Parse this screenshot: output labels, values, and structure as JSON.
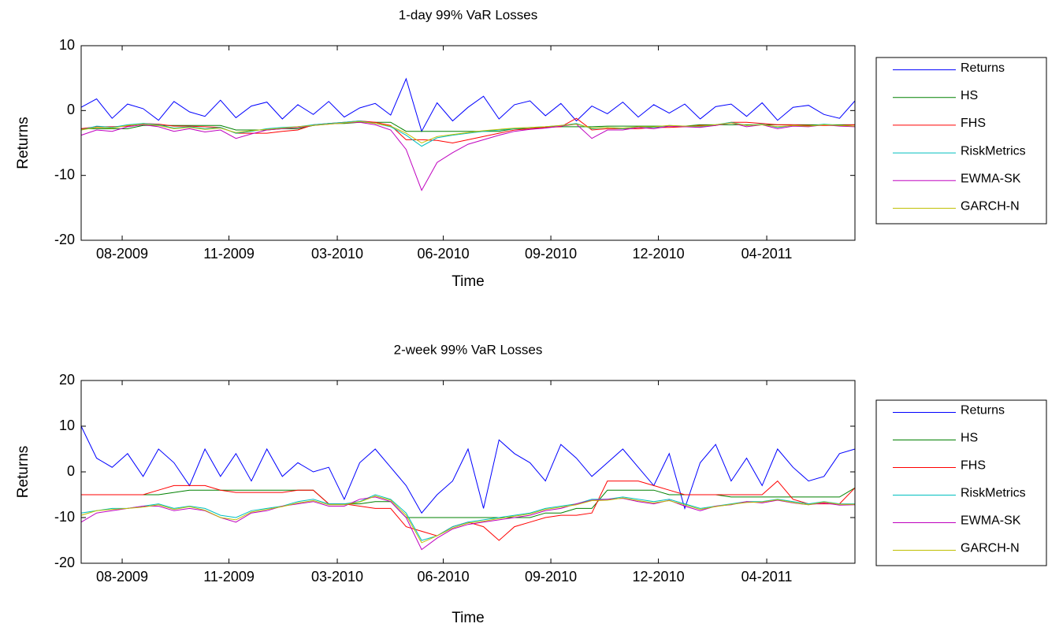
{
  "chart_data": [
    {
      "type": "line",
      "title": "1-day 99% VaR Losses",
      "x_label": "Time",
      "y_label": "Returns",
      "x": [
        0,
        2,
        4,
        6,
        8,
        10,
        12,
        14,
        16,
        18,
        20,
        22,
        24,
        26,
        28,
        30,
        32,
        34,
        36,
        38,
        40,
        42,
        44,
        46,
        48,
        50,
        52,
        54,
        56,
        58,
        60,
        62,
        64,
        66,
        68,
        70,
        72,
        74,
        76,
        78,
        80,
        82,
        84,
        86,
        88,
        90,
        92,
        94,
        96,
        98,
        100
      ],
      "xlim": [
        0,
        100
      ],
      "xticks": [
        {
          "value": 5.3,
          "label": "08-2009"
        },
        {
          "value": 19.1,
          "label": "11-2009"
        },
        {
          "value": 33.1,
          "label": "03-2010"
        },
        {
          "value": 46.8,
          "label": "06-2010"
        },
        {
          "value": 60.7,
          "label": "09-2010"
        },
        {
          "value": 74.6,
          "label": "12-2010"
        },
        {
          "value": 88.6,
          "label": "04-2011"
        }
      ],
      "ylim": [
        -20,
        10
      ],
      "yticks": [
        -20,
        -10,
        0,
        10
      ],
      "grid": false,
      "legend": "east-outside",
      "series": [
        {
          "name": "Returns",
          "color": "#0000ff",
          "values": [
            0.5,
            1.8,
            -1.2,
            1.0,
            0.3,
            -1.5,
            1.4,
            -0.2,
            -0.9,
            1.6,
            -1.1,
            0.7,
            1.3,
            -1.3,
            0.9,
            -0.6,
            1.4,
            -1.0,
            0.4,
            1.1,
            -0.7,
            4.9,
            -3.2,
            1.2,
            -1.6,
            0.5,
            2.2,
            -1.3,
            0.9,
            1.5,
            -0.8,
            1.1,
            -1.6,
            0.7,
            -0.5,
            1.3,
            -1.0,
            0.9,
            -0.4,
            1.0,
            -1.3,
            0.6,
            1.0,
            -0.9,
            1.2,
            -1.5,
            0.5,
            0.8,
            -0.6,
            -1.2,
            1.5
          ]
        },
        {
          "name": "HS",
          "color": "#008000",
          "values": [
            -2.8,
            -2.8,
            -2.8,
            -2.8,
            -2.3,
            -2.3,
            -2.3,
            -2.3,
            -2.3,
            -2.3,
            -3.0,
            -3.0,
            -3.0,
            -2.8,
            -2.8,
            -2.3,
            -2.0,
            -2.0,
            -1.8,
            -1.8,
            -1.8,
            -3.2,
            -3.2,
            -3.2,
            -3.2,
            -3.2,
            -3.2,
            -3.2,
            -2.8,
            -2.8,
            -2.5,
            -2.5,
            -2.5,
            -2.5,
            -2.4,
            -2.4,
            -2.4,
            -2.4,
            -2.4,
            -2.4,
            -2.2,
            -2.2,
            -2.2,
            -2.2,
            -2.2,
            -2.2,
            -2.2,
            -2.2,
            -2.2,
            -2.2,
            -2.2
          ]
        },
        {
          "name": "FHS",
          "color": "#ff0000",
          "values": [
            -2.8,
            -2.5,
            -2.5,
            -2.4,
            -2.0,
            -2.1,
            -2.4,
            -2.4,
            -2.5,
            -2.6,
            -3.5,
            -3.5,
            -3.5,
            -3.2,
            -3.0,
            -2.2,
            -2.0,
            -1.8,
            -1.6,
            -1.8,
            -2.3,
            -4.5,
            -4.5,
            -4.6,
            -5.0,
            -4.5,
            -4.0,
            -3.5,
            -3.0,
            -2.8,
            -2.6,
            -2.5,
            -1.2,
            -3.0,
            -2.8,
            -2.8,
            -2.8,
            -2.6,
            -2.6,
            -2.5,
            -2.3,
            -2.3,
            -1.8,
            -1.8,
            -2.0,
            -2.2,
            -2.2,
            -2.3,
            -2.3,
            -2.3,
            -2.2
          ]
        },
        {
          "name": "RiskMetrics",
          "color": "#00bfbf",
          "values": [
            -3.0,
            -2.4,
            -2.6,
            -2.2,
            -2.0,
            -2.2,
            -2.7,
            -2.5,
            -2.8,
            -2.6,
            -3.5,
            -3.2,
            -2.8,
            -2.6,
            -2.5,
            -2.2,
            -2.0,
            -1.8,
            -1.6,
            -2.0,
            -2.5,
            -3.8,
            -5.5,
            -4.2,
            -3.8,
            -3.5,
            -3.2,
            -3.0,
            -2.8,
            -2.6,
            -2.5,
            -2.3,
            -2.0,
            -2.8,
            -2.6,
            -2.8,
            -2.5,
            -2.6,
            -2.3,
            -2.4,
            -2.5,
            -2.2,
            -1.8,
            -2.3,
            -2.1,
            -2.6,
            -2.3,
            -2.4,
            -2.1,
            -2.3,
            -2.4
          ]
        },
        {
          "name": "EWMA-SK",
          "color": "#bf00bf",
          "values": [
            -3.8,
            -3.0,
            -3.2,
            -2.5,
            -2.2,
            -2.5,
            -3.2,
            -2.8,
            -3.3,
            -3.0,
            -4.3,
            -3.6,
            -3.0,
            -2.8,
            -2.6,
            -2.3,
            -2.1,
            -1.9,
            -1.8,
            -2.2,
            -3.0,
            -6.0,
            -12.3,
            -8.0,
            -6.5,
            -5.2,
            -4.5,
            -3.8,
            -3.2,
            -2.9,
            -2.7,
            -2.4,
            -2.1,
            -4.3,
            -3.0,
            -3.0,
            -2.6,
            -2.8,
            -2.4,
            -2.5,
            -2.6,
            -2.3,
            -1.9,
            -2.5,
            -2.2,
            -2.8,
            -2.4,
            -2.5,
            -2.2,
            -2.4,
            -2.5
          ]
        },
        {
          "name": "GARCH-N",
          "color": "#bfbf00",
          "values": [
            -3.0,
            -2.6,
            -2.7,
            -2.3,
            -2.1,
            -2.3,
            -2.8,
            -2.6,
            -2.9,
            -2.7,
            -3.4,
            -3.1,
            -2.9,
            -2.7,
            -2.5,
            -2.3,
            -2.1,
            -1.9,
            -1.7,
            -2.0,
            -2.4,
            -3.5,
            -5.0,
            -4.0,
            -3.7,
            -3.4,
            -3.1,
            -2.9,
            -2.7,
            -2.6,
            -2.5,
            -2.3,
            -2.1,
            -2.7,
            -2.6,
            -2.7,
            -2.5,
            -2.5,
            -2.3,
            -2.4,
            -2.4,
            -2.2,
            -1.9,
            -2.3,
            -2.2,
            -2.5,
            -2.3,
            -2.4,
            -2.2,
            -2.3,
            -2.4
          ]
        }
      ]
    },
    {
      "type": "line",
      "title": "2-week 99% VaR Losses",
      "x_label": "Time",
      "y_label": "Returns",
      "x": [
        0,
        2,
        4,
        6,
        8,
        10,
        12,
        14,
        16,
        18,
        20,
        22,
        24,
        26,
        28,
        30,
        32,
        34,
        36,
        38,
        40,
        42,
        44,
        46,
        48,
        50,
        52,
        54,
        56,
        58,
        60,
        62,
        64,
        66,
        68,
        70,
        72,
        74,
        76,
        78,
        80,
        82,
        84,
        86,
        88,
        90,
        92,
        94,
        96,
        98,
        100
      ],
      "xlim": [
        0,
        100
      ],
      "xticks": [
        {
          "value": 5.3,
          "label": "08-2009"
        },
        {
          "value": 19.1,
          "label": "11-2009"
        },
        {
          "value": 33.1,
          "label": "03-2010"
        },
        {
          "value": 46.8,
          "label": "06-2010"
        },
        {
          "value": 60.7,
          "label": "09-2010"
        },
        {
          "value": 74.6,
          "label": "12-2010"
        },
        {
          "value": 88.6,
          "label": "04-2011"
        }
      ],
      "ylim": [
        -20,
        20
      ],
      "yticks": [
        -20,
        -10,
        0,
        10,
        20
      ],
      "grid": false,
      "legend": "east-outside",
      "series": [
        {
          "name": "Returns",
          "color": "#0000ff",
          "values": [
            10,
            3,
            1,
            4,
            -1,
            5,
            2,
            -3,
            5,
            -1,
            4,
            -2,
            5,
            -1,
            2,
            0,
            1,
            -6,
            2,
            5,
            1,
            -3,
            -9,
            -5,
            -2,
            5,
            -8,
            7,
            4,
            2,
            -2,
            6,
            3,
            -1,
            2,
            5,
            1,
            -3,
            4,
            -8,
            2,
            6,
            -2,
            3,
            -3,
            5,
            1,
            -2,
            -1,
            4,
            5
          ]
        },
        {
          "name": "HS",
          "color": "#008000",
          "values": [
            -5,
            -5,
            -5,
            -5,
            -5,
            -5,
            -4.5,
            -4,
            -4,
            -4,
            -4,
            -4,
            -4,
            -4,
            -4,
            -4,
            -7,
            -7,
            -7,
            -6.5,
            -6.5,
            -10,
            -10,
            -10,
            -10,
            -10,
            -10,
            -10,
            -10,
            -10,
            -9,
            -9,
            -8,
            -8,
            -4,
            -4,
            -4,
            -4,
            -5,
            -5,
            -5,
            -5,
            -5.5,
            -5.5,
            -5.5,
            -5.5,
            -5.5,
            -5.5,
            -5.5,
            -5.5,
            -3.5
          ]
        },
        {
          "name": "FHS",
          "color": "#ff0000",
          "values": [
            -5,
            -5,
            -5,
            -5,
            -5,
            -4,
            -3,
            -3,
            -3,
            -4,
            -4.5,
            -4.5,
            -4.5,
            -4.5,
            -4,
            -4,
            -7,
            -7,
            -7.5,
            -8,
            -8,
            -12,
            -13,
            -14,
            -12,
            -11,
            -12,
            -15,
            -12,
            -11,
            -10,
            -9.5,
            -9.5,
            -9,
            -2,
            -2,
            -2,
            -3,
            -4,
            -5,
            -5,
            -5,
            -5,
            -5,
            -5,
            -2,
            -6,
            -7,
            -7,
            -7,
            -3.5
          ]
        },
        {
          "name": "RiskMetrics",
          "color": "#00bfbf",
          "values": [
            -9,
            -8.5,
            -8,
            -8,
            -7.5,
            -7,
            -8,
            -7.5,
            -8,
            -9.5,
            -10,
            -8.5,
            -8,
            -7.5,
            -6.5,
            -6,
            -7,
            -7,
            -6.5,
            -5,
            -6,
            -9,
            -15,
            -14,
            -12,
            -11,
            -10.5,
            -10,
            -9.5,
            -9,
            -8,
            -7.5,
            -7,
            -6,
            -6,
            -5.5,
            -6,
            -6.5,
            -6,
            -7,
            -8,
            -7.5,
            -7,
            -6.5,
            -6.5,
            -6,
            -6.5,
            -7,
            -6.5,
            -7,
            -7
          ]
        },
        {
          "name": "EWMA-SK",
          "color": "#bf00bf",
          "values": [
            -11,
            -9,
            -8.5,
            -8,
            -7.5,
            -7.5,
            -8.5,
            -8,
            -8.5,
            -10,
            -11,
            -9,
            -8.5,
            -7.5,
            -7,
            -6.5,
            -7.5,
            -7.5,
            -6,
            -5.5,
            -6.5,
            -10,
            -17,
            -14.5,
            -12.5,
            -11.5,
            -11,
            -10.5,
            -10,
            -9.5,
            -8.5,
            -8,
            -7,
            -6.2,
            -6,
            -5.8,
            -6.5,
            -7,
            -6.2,
            -7.5,
            -8.5,
            -7.5,
            -7.2,
            -6.5,
            -6.8,
            -6.2,
            -6.8,
            -7.2,
            -6.8,
            -7.3,
            -7.2
          ]
        },
        {
          "name": "GARCH-N",
          "color": "#bfbf00",
          "values": [
            -9.5,
            -8.5,
            -8.2,
            -8,
            -7.7,
            -7.2,
            -8.2,
            -7.6,
            -8.4,
            -10,
            -10.5,
            -8.8,
            -8.2,
            -7.6,
            -6.8,
            -6.3,
            -7.2,
            -7.2,
            -6.6,
            -5.3,
            -6.2,
            -9.5,
            -15.5,
            -14,
            -12.3,
            -11.2,
            -10.8,
            -10.2,
            -9.7,
            -9.2,
            -8.2,
            -7.7,
            -7.2,
            -6.3,
            -6.2,
            -5.7,
            -6.3,
            -6.8,
            -6.3,
            -7.2,
            -8.2,
            -7.6,
            -7.1,
            -6.7,
            -6.6,
            -6.1,
            -6.7,
            -7.2,
            -6.6,
            -7.1,
            -7.1
          ]
        }
      ]
    }
  ]
}
